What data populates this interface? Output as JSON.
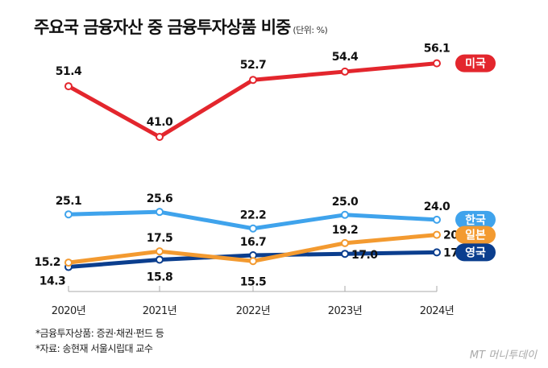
{
  "chart_data": {
    "type": "line",
    "title": "주요국 금융자산 중 금융투자상품 비중",
    "unit": "(단위: %)",
    "categories": [
      "2020년",
      "2021년",
      "2022년",
      "2023년",
      "2024년"
    ],
    "series": [
      {
        "name": "미국",
        "color": "#e3262d",
        "values": [
          51.4,
          41.0,
          52.7,
          54.4,
          56.1
        ]
      },
      {
        "name": "한국",
        "color": "#3fa3ec",
        "values": [
          25.1,
          25.6,
          22.2,
          25.0,
          24.0
        ]
      },
      {
        "name": "일본",
        "color": "#f39a30",
        "values": [
          15.2,
          17.5,
          15.5,
          19.2,
          20.9
        ]
      },
      {
        "name": "영국",
        "color": "#0b3e8e",
        "values": [
          14.3,
          15.8,
          16.7,
          17.0,
          17.3
        ]
      }
    ],
    "grid": false,
    "legend": "right"
  },
  "notes": [
    "*금융투자상품: 증권·채권·펀드 등",
    "*자료: 송현재 서울시립대 교수"
  ],
  "brand": "MT 머니투데이"
}
